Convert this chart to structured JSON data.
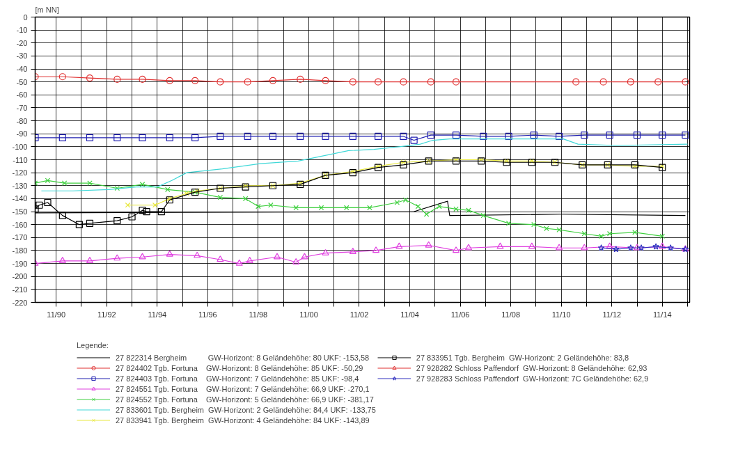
{
  "chart_data": {
    "type": "line",
    "ylabel": "[m NN]",
    "legend_title": "Legende:",
    "legend": "bottom",
    "grid": true,
    "xlim": [
      "1990-01",
      "2015-12"
    ],
    "ylim": [
      -220,
      0
    ],
    "xticks": [
      {
        "value": "1990-11",
        "label": "11/90"
      },
      {
        "value": "1991-11",
        "label": null
      },
      {
        "value": "1992-11",
        "label": "11/92"
      },
      {
        "value": "1993-11",
        "label": null
      },
      {
        "value": "1994-11",
        "label": "11/94"
      },
      {
        "value": "1995-11",
        "label": null
      },
      {
        "value": "1996-11",
        "label": "11/96"
      },
      {
        "value": "1997-11",
        "label": null
      },
      {
        "value": "1998-11",
        "label": "11/98"
      },
      {
        "value": "1999-11",
        "label": null
      },
      {
        "value": "2000-11",
        "label": "11/00"
      },
      {
        "value": "2001-11",
        "label": null
      },
      {
        "value": "2002-11",
        "label": "11/02"
      },
      {
        "value": "2003-11",
        "label": null
      },
      {
        "value": "2004-11",
        "label": "11/04"
      },
      {
        "value": "2005-11",
        "label": null
      },
      {
        "value": "2006-11",
        "label": "11/06"
      },
      {
        "value": "2007-11",
        "label": null
      },
      {
        "value": "2008-11",
        "label": "11/08"
      },
      {
        "value": "2009-11",
        "label": null
      },
      {
        "value": "2010-11",
        "label": "11/10"
      },
      {
        "value": "2011-11",
        "label": null
      },
      {
        "value": "2012-11",
        "label": "11/12"
      },
      {
        "value": "2013-11",
        "label": null
      },
      {
        "value": "2014-11",
        "label": "11/14"
      },
      {
        "value": "2015-11",
        "label": null
      }
    ],
    "yticks": [
      0,
      -10,
      -20,
      -30,
      -40,
      -50,
      -60,
      -70,
      -80,
      -90,
      -100,
      -110,
      -120,
      -130,
      -140,
      -150,
      -160,
      -170,
      -180,
      -190,
      -200,
      -210,
      -220
    ],
    "series": [
      {
        "name": "27 822314 Bergheim          GW-Horizont: 8 Geländehöhe: 80 UKF: -153,58",
        "color": "#000000",
        "marker": "none",
        "x": [
          "1990-01",
          "2005-01",
          "2006-05",
          "2006-06",
          "2010-11",
          "2015-10"
        ],
        "values": [
          -151,
          -150,
          -142,
          -153,
          -152,
          -153
        ]
      },
      {
        "name": "27 824402 Tgb. Fortuna    GW-Horizont: 8 Geländehöhe: 85 UKF: -50,29",
        "color": "#e03030",
        "marker": "circle",
        "x": [
          "1990-01",
          "1991-02",
          "1992-03",
          "1993-04",
          "1994-04",
          "1995-05",
          "1996-05",
          "1997-05",
          "1998-06",
          "1999-06",
          "2000-07",
          "2001-07",
          "2002-08",
          "2003-08",
          "2004-08",
          "2005-09",
          "2006-09",
          "2011-06",
          "2012-07",
          "2013-08",
          "2014-09",
          "2015-10"
        ],
        "values": [
          -46,
          -46,
          -47,
          -48,
          -48,
          -49,
          -49,
          -50,
          -50,
          -49,
          -48,
          -49,
          -50,
          -50,
          -50,
          -50,
          -50,
          -50,
          -50,
          -50,
          -50,
          -50
        ]
      },
      {
        "name": "27 824403 Tgb. Fortuna    GW-Horizont: 7 Geländehöhe: 85 UKF: -98,4",
        "color": "#2020b0",
        "marker": "square",
        "x": [
          "1990-01",
          "1991-02",
          "1992-03",
          "1993-04",
          "1994-04",
          "1995-05",
          "1996-05",
          "1997-05",
          "1998-06",
          "1999-06",
          "2000-07",
          "2001-07",
          "2002-08",
          "2003-08",
          "2004-08",
          "2005-01",
          "2005-09",
          "2006-09",
          "2007-10",
          "2008-10",
          "2009-10",
          "2010-10",
          "2011-10",
          "2012-10",
          "2013-11",
          "2014-11",
          "2015-10"
        ],
        "values": [
          -93,
          -93,
          -93,
          -93,
          -93,
          -93,
          -93,
          -92,
          -92,
          -92,
          -92,
          -92,
          -92,
          -92,
          -92,
          -95,
          -91,
          -91,
          -92,
          -92,
          -91,
          -92,
          -91,
          -91,
          -91,
          -91,
          -91
        ]
      },
      {
        "name": "27 824551 Tgb. Fortuna    GW-Horizont: 7 Geländehöhe: 66,9 UKF: -270,1",
        "color": "#e040e0",
        "marker": "triangle",
        "x": [
          "1990-01",
          "1991-02",
          "1992-03",
          "1993-04",
          "1994-04",
          "1995-05",
          "1996-06",
          "1997-05",
          "1998-02",
          "1998-07",
          "1999-08",
          "2000-05",
          "2000-09",
          "2001-07",
          "2002-08",
          "2003-07",
          "2004-06",
          "2005-08",
          "2006-09",
          "2007-03",
          "2008-06",
          "2009-09",
          "2010-10",
          "2011-10",
          "2012-10",
          "2013-11",
          "2014-11",
          "2015-10"
        ],
        "values": [
          -190,
          -188,
          -188,
          -186,
          -185,
          -183,
          -184,
          -187,
          -190,
          -188,
          -185,
          -189,
          -185,
          -182,
          -181,
          -180,
          -177,
          -176,
          -180,
          -178,
          -177,
          -177,
          -178,
          -178,
          -177,
          -178,
          -177,
          -179
        ]
      },
      {
        "name": "27 824552 Tgb. Fortuna    GW-Horizont: 5 Geländehöhe: 66,9 UKF: -381,17",
        "color": "#40d040",
        "marker": "cross",
        "x": [
          "1990-01",
          "1990-07",
          "1991-03",
          "1992-03",
          "1993-04",
          "1994-04",
          "1995-04",
          "1996-05",
          "1997-05",
          "1998-05",
          "1998-11",
          "1999-05",
          "2000-05",
          "2001-05",
          "2002-05",
          "2003-04",
          "2004-05",
          "2004-09",
          "2005-03",
          "2005-07",
          "2006-01",
          "2006-09",
          "2007-03",
          "2007-10",
          "2008-10",
          "2009-10",
          "2010-04",
          "2010-10",
          "2011-10",
          "2012-06",
          "2012-10",
          "2013-10",
          "2014-11"
        ],
        "values": [
          -128,
          -126,
          -128,
          -128,
          -132,
          -129,
          -133,
          -135,
          -139,
          -140,
          -146,
          -145,
          -147,
          -147,
          -147,
          -147,
          -143,
          -141,
          -146,
          -152,
          -146,
          -148,
          -149,
          -153,
          -159,
          -160,
          -163,
          -164,
          -167,
          -169,
          -167,
          -166,
          -169
        ]
      },
      {
        "name": "27 833601 Tgb. Bergheim  GW-Horizont: 2 Geländehöhe: 84,4 UKF: -133,75",
        "color": "#40d8d8",
        "marker": "none",
        "x": [
          "1990-04",
          "1991-07",
          "1992-12",
          "1994-01",
          "1994-11",
          "1995-06",
          "1996-01",
          "1997-06",
          "1998-12",
          "2000-06",
          "2001-06",
          "2002-06",
          "2003-06",
          "2004-06",
          "2005-04",
          "2005-10",
          "2006-06",
          "2008-01",
          "2010-12",
          "2011-07",
          "2013-01",
          "2015-11"
        ],
        "values": [
          -134,
          -134,
          -133,
          -131,
          -131,
          -126,
          -120,
          -117,
          -113,
          -111,
          -107,
          -103,
          -102,
          -100,
          -98,
          -95,
          -94,
          -94,
          -94,
          -98,
          -99,
          -98
        ]
      },
      {
        "name": "27 833941 Tgb. Bergheim  GW-Horizont: 4 Geländehöhe: 84 UKF: -143,89",
        "color": "#e8e840",
        "marker": "cross",
        "x": [
          "1993-09",
          "1994-10",
          "1995-05",
          "1996-01",
          "1996-06",
          "1997-05",
          "1998-05",
          "1999-06",
          "2000-07",
          "2001-07",
          "2002-08",
          "2003-08",
          "2004-08",
          "2005-08",
          "2006-09",
          "2007-09",
          "2008-09",
          "2009-09",
          "2010-08",
          "2011-09",
          "2012-09",
          "2013-10",
          "2014-11"
        ],
        "values": [
          -145,
          -145,
          -140,
          -136,
          -134,
          -132,
          -130,
          -130,
          -128,
          -122,
          -119,
          -115,
          -112,
          -111,
          -110,
          -110,
          -111,
          -111,
          -112,
          -114,
          -114,
          -115,
          -115
        ]
      },
      {
        "name": "27 833951 Tgb. Bergheim  GW-Horizont: 2 Geländehöhe: 83,8",
        "color": "#000000",
        "marker": "square",
        "x": [
          "1990-01",
          "1990-03",
          "1990-07",
          "1991-02",
          "1991-10",
          "1992-03",
          "1993-04",
          "1993-11",
          "1994-04",
          "1994-06",
          "1995-01",
          "1995-05",
          "1996-05",
          "1997-05",
          "1998-05",
          "1999-06",
          "2000-07",
          "2001-07",
          "2002-08",
          "2003-08",
          "2004-08",
          "2005-08",
          "2006-09",
          "2007-09",
          "2008-09",
          "2009-09",
          "2010-08",
          "2011-09",
          "2012-09",
          "2013-10",
          "2014-11"
        ],
        "values": [
          -148,
          -145,
          -143,
          -153,
          -160,
          -159,
          -157,
          -154,
          -149,
          -150,
          -150,
          -141,
          -135,
          -132,
          -131,
          -130,
          -129,
          -122,
          -120,
          -116,
          -114,
          -111,
          -111,
          -111,
          -112,
          -112,
          -112,
          -114,
          -114,
          -114,
          -116
        ]
      },
      {
        "name": "27 928282 Schloss Paffendorf  GW-Horizont: 8 Geländehöhe: 62,93",
        "color": "#e03030",
        "marker": "triangle"
      },
      {
        "name": "27 928283 Schloss Paffendorf  GW-Horizont: 7C Geländehöhe: 62,9",
        "color": "#3030c0",
        "marker": "star",
        "x": [
          "2012-06",
          "2013-01",
          "2013-08",
          "2014-01",
          "2014-08",
          "2015-03",
          "2015-10"
        ],
        "values": [
          -178,
          -179,
          -178,
          -178,
          -177,
          -178,
          -179
        ]
      }
    ]
  }
}
